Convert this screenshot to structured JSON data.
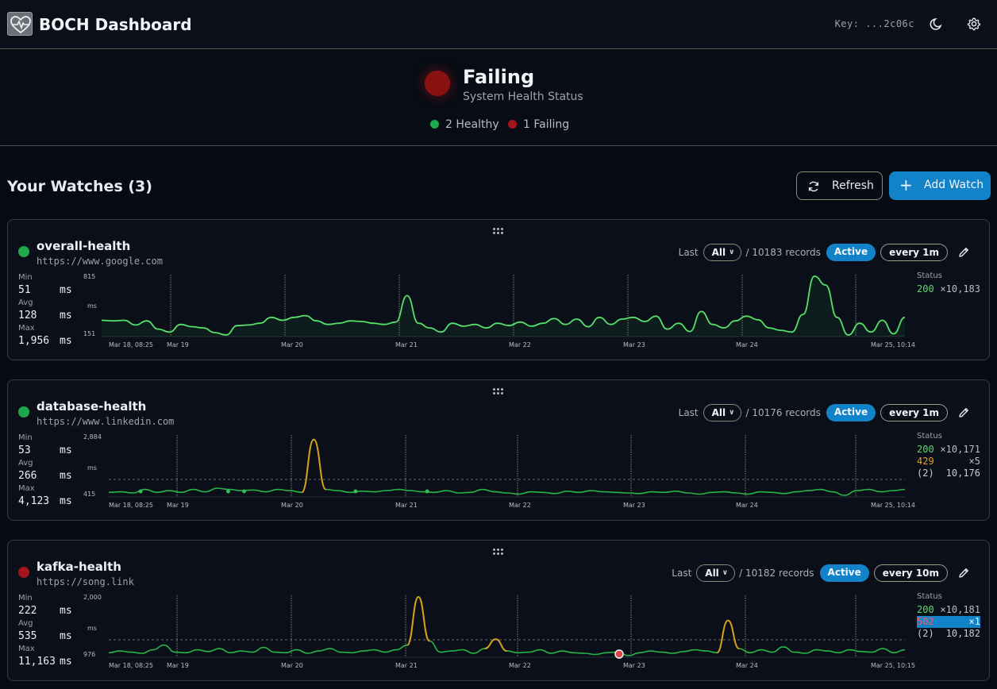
{
  "app": {
    "title": "BOCH Dashboard",
    "key": "Key: ...2c06c"
  },
  "health": {
    "status": "Failing",
    "subtitle": "System Health Status",
    "healthy_label": "2 Healthy",
    "failing_label": "1 Failing"
  },
  "toolbar": {
    "title": "Your Watches (3)",
    "refresh_label": "Refresh",
    "add_label": "Add Watch"
  },
  "colors": {
    "accent": "#1283c9",
    "ok": "#3fd35a",
    "warn": "#d89a14",
    "fail": "#a3141b"
  },
  "watches": [
    {
      "name": "overall-health",
      "url": "https://www.google.com",
      "status": "healthy",
      "range_prefix": "Last",
      "range": "All",
      "records": "/ 10183 records",
      "state": "Active",
      "interval": "every 1m",
      "stats": {
        "min_label": "Min",
        "min": "51",
        "avg_label": "Avg",
        "avg": "128",
        "max_label": "Max",
        "max": "1,956",
        "unit": "ms"
      },
      "y_top": "815",
      "y_unit": "ms",
      "y_bottom": "151",
      "x_labels": [
        "Mar 18, 08:25",
        "Mar 19",
        "Mar 20",
        "Mar 21",
        "Mar 22",
        "Mar 23",
        "Mar 24",
        "Mar 25, 10:14"
      ],
      "status_title": "Status",
      "status_rows": [
        {
          "code": "200",
          "count": "×10,183",
          "kind": "ok"
        }
      ]
    },
    {
      "name": "database-health",
      "url": "https://www.linkedin.com",
      "status": "healthy",
      "range_prefix": "Last",
      "range": "All",
      "records": "/ 10176 records",
      "state": "Active",
      "interval": "every 1m",
      "stats": {
        "min_label": "Min",
        "min": "53",
        "avg_label": "Avg",
        "avg": "266",
        "max_label": "Max",
        "max": "4,123",
        "unit": "ms"
      },
      "y_top": "2,884",
      "y_unit": "ms",
      "y_bottom": "415",
      "x_labels": [
        "Mar 18, 08:25",
        "Mar 19",
        "Mar 20",
        "Mar 21",
        "Mar 22",
        "Mar 23",
        "Mar 24",
        "Mar 25, 10:14"
      ],
      "status_title": "Status",
      "status_rows": [
        {
          "code": "200",
          "count": "×10,171",
          "kind": "ok"
        },
        {
          "code": "429",
          "count": "×5",
          "kind": "warn"
        },
        {
          "code": "(2)",
          "count": "10,176",
          "kind": "total"
        }
      ]
    },
    {
      "name": "kafka-health",
      "url": "https://song.link",
      "status": "failing",
      "range_prefix": "Last",
      "range": "All",
      "records": "/ 10182 records",
      "state": "Active",
      "interval": "every 10m",
      "stats": {
        "min_label": "Min",
        "min": "222",
        "avg_label": "Avg",
        "avg": "535",
        "max_label": "Max",
        "max": "11,163",
        "unit": "ms"
      },
      "y_top": "2,000",
      "y_unit": "ms",
      "y_bottom": "976",
      "x_labels": [
        "Mar 18, 08:25",
        "Mar 19",
        "Mar 20",
        "Mar 21",
        "Mar 22",
        "Mar 23",
        "Mar 24",
        "Mar 25, 10:15"
      ],
      "status_title": "Status",
      "status_rows": [
        {
          "code": "200",
          "count": "×10,181",
          "kind": "ok"
        },
        {
          "code": "502",
          "count": "×1",
          "kind": "err"
        },
        {
          "code": "(2)",
          "count": "10,182",
          "kind": "total"
        }
      ]
    }
  ]
}
